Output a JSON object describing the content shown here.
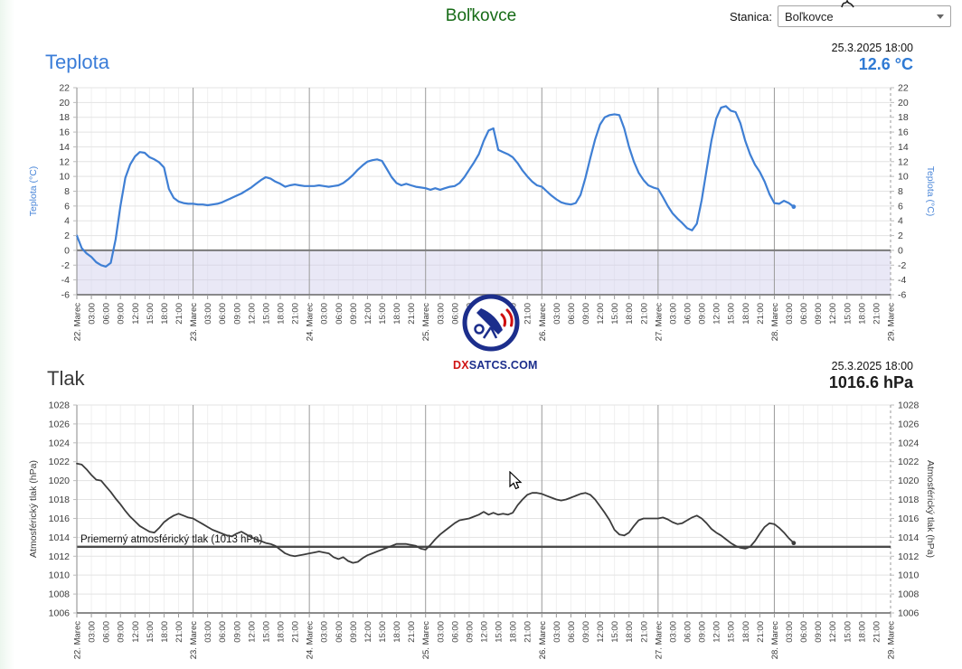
{
  "page": {
    "station_title": "Boľkovce",
    "station_select": {
      "label": "Stanica:",
      "value": "Boľkovce"
    }
  },
  "temperature": {
    "title": "Teplota",
    "timestamp": "25.3.2025 18:00",
    "current_value": "12.6 °C",
    "accent_color": "#2f7ad4"
  },
  "pressure": {
    "title": "Tlak",
    "timestamp": "25.3.2025 18:00",
    "current_value": "1016.6 hPa"
  },
  "watermark": {
    "dx": "DX",
    "rest": "SATCS.COM",
    "dx_color": "#cf1414",
    "main_color": "#1c2e8c"
  },
  "time_axis": {
    "start": "22. Marec 00:00",
    "end": "29. Marec 00:00",
    "tick_interval_hours": 3,
    "tick_labels": [
      "22. Marec",
      "03:00",
      "06:00",
      "09:00",
      "12:00",
      "15:00",
      "18:00",
      "21:00",
      "23. Marec",
      "03:00",
      "06:00",
      "09:00",
      "12:00",
      "15:00",
      "18:00",
      "21:00",
      "24. Marec",
      "03:00",
      "06:00",
      "09:00",
      "12:00",
      "15:00",
      "18:00",
      "21:00",
      "25. Marec",
      "03:00",
      "06:00",
      "09:00",
      "12:00",
      "15:00",
      "18:00",
      "21:00",
      "26. Marec",
      "03:00",
      "06:00",
      "09:00",
      "12:00",
      "15:00",
      "18:00",
      "21:00",
      "27. Marec",
      "03:00",
      "06:00",
      "09:00",
      "12:00",
      "15:00",
      "18:00",
      "21:00",
      "28. Marec",
      "03:00",
      "06:00",
      "09:00",
      "12:00",
      "15:00",
      "18:00",
      "21:00",
      "29. Marec"
    ]
  },
  "chart_data": [
    {
      "type": "line",
      "title": "Teplota",
      "ylabel": "Teplota (°C)",
      "ylim": [
        -6,
        22
      ],
      "ytick_step": 2,
      "grid": true,
      "shade_below": 0,
      "zero_line": true,
      "sample_interval_hours": 1,
      "series": [
        {
          "name": "Teplota",
          "color": "#3f7fd4",
          "values": [
            2.0,
            0.3,
            -0.4,
            -0.9,
            -1.6,
            -2.0,
            -2.2,
            -1.7,
            1.5,
            6.0,
            9.8,
            11.6,
            12.7,
            13.3,
            13.2,
            12.6,
            12.3,
            11.9,
            11.2,
            8.3,
            7.1,
            6.6,
            6.4,
            6.3,
            6.3,
            6.2,
            6.2,
            6.1,
            6.2,
            6.3,
            6.5,
            6.8,
            7.1,
            7.4,
            7.7,
            8.1,
            8.5,
            9.0,
            9.5,
            9.9,
            9.7,
            9.3,
            9.0,
            8.6,
            8.8,
            8.9,
            8.8,
            8.7,
            8.7,
            8.7,
            8.8,
            8.7,
            8.6,
            8.7,
            8.8,
            9.1,
            9.6,
            10.2,
            10.9,
            11.5,
            12.0,
            12.2,
            12.3,
            12.1,
            11.0,
            9.9,
            9.1,
            8.8,
            9.0,
            8.8,
            8.6,
            8.5,
            8.4,
            8.2,
            8.4,
            8.2,
            8.4,
            8.6,
            8.7,
            9.1,
            9.9,
            10.9,
            11.9,
            13.0,
            14.8,
            16.2,
            16.5,
            13.6,
            13.3,
            13.0,
            12.6,
            11.8,
            10.8,
            10.0,
            9.3,
            8.8,
            8.6,
            8.0,
            7.4,
            6.9,
            6.5,
            6.3,
            6.2,
            6.4,
            7.5,
            9.8,
            12.5,
            15.0,
            17.0,
            18.0,
            18.3,
            18.4,
            18.3,
            16.5,
            14.0,
            12.0,
            10.5,
            9.5,
            8.8,
            8.5,
            8.3,
            7.2,
            6.0,
            5.0,
            4.3,
            3.7,
            3.0,
            2.7,
            3.6,
            6.8,
            10.8,
            14.8,
            17.8,
            19.3,
            19.5,
            18.9,
            18.7,
            17.2,
            14.8,
            13.0,
            11.6,
            10.6,
            9.3,
            7.6,
            6.4,
            6.3,
            6.7,
            6.4,
            5.9
          ]
        }
      ]
    },
    {
      "type": "line",
      "title": "Tlak",
      "ylabel": "Atmosférický tlak (hPa)",
      "ylim": [
        1006,
        1028
      ],
      "ytick_step": 2,
      "grid": true,
      "ref_line": {
        "value": 1013,
        "label": "Priemerný atmosférický tlak (1013 hPa)"
      },
      "sample_interval_hours": 1,
      "series": [
        {
          "name": "Atmosférický tlak",
          "color": "#3c3c3c",
          "values": [
            1021.8,
            1021.7,
            1021.2,
            1020.6,
            1020.1,
            1020.0,
            1019.4,
            1018.8,
            1018.1,
            1017.5,
            1016.8,
            1016.2,
            1015.7,
            1015.2,
            1014.9,
            1014.6,
            1014.5,
            1015.0,
            1015.6,
            1016.0,
            1016.3,
            1016.5,
            1016.3,
            1016.1,
            1016.0,
            1015.7,
            1015.4,
            1015.1,
            1014.8,
            1014.6,
            1014.4,
            1014.2,
            1014.1,
            1014.4,
            1014.6,
            1014.3,
            1014.0,
            1013.8,
            1013.6,
            1013.4,
            1013.3,
            1013.1,
            1012.7,
            1012.3,
            1012.1,
            1012.0,
            1012.1,
            1012.2,
            1012.3,
            1012.4,
            1012.5,
            1012.4,
            1012.3,
            1011.9,
            1011.7,
            1011.9,
            1011.5,
            1011.3,
            1011.4,
            1011.8,
            1012.1,
            1012.3,
            1012.5,
            1012.7,
            1012.9,
            1013.1,
            1013.3,
            1013.3,
            1013.3,
            1013.2,
            1013.1,
            1012.8,
            1012.7,
            1013.2,
            1013.8,
            1014.3,
            1014.7,
            1015.1,
            1015.5,
            1015.8,
            1015.9,
            1016.0,
            1016.2,
            1016.4,
            1016.7,
            1016.4,
            1016.6,
            1016.4,
            1016.5,
            1016.4,
            1016.6,
            1017.4,
            1018.0,
            1018.5,
            1018.7,
            1018.7,
            1018.6,
            1018.4,
            1018.2,
            1018.0,
            1017.9,
            1018.0,
            1018.2,
            1018.4,
            1018.6,
            1018.7,
            1018.5,
            1018.0,
            1017.3,
            1016.6,
            1015.8,
            1014.8,
            1014.3,
            1014.2,
            1014.5,
            1015.2,
            1015.8,
            1016.0,
            1016.0,
            1016.0,
            1016.0,
            1016.1,
            1015.9,
            1015.6,
            1015.4,
            1015.5,
            1015.8,
            1016.1,
            1016.3,
            1016.0,
            1015.5,
            1014.9,
            1014.5,
            1014.2,
            1013.8,
            1013.4,
            1013.1,
            1012.9,
            1012.8,
            1013.0,
            1013.6,
            1014.4,
            1015.1,
            1015.5,
            1015.4,
            1015.0,
            1014.5,
            1013.9,
            1013.4
          ]
        }
      ]
    }
  ]
}
